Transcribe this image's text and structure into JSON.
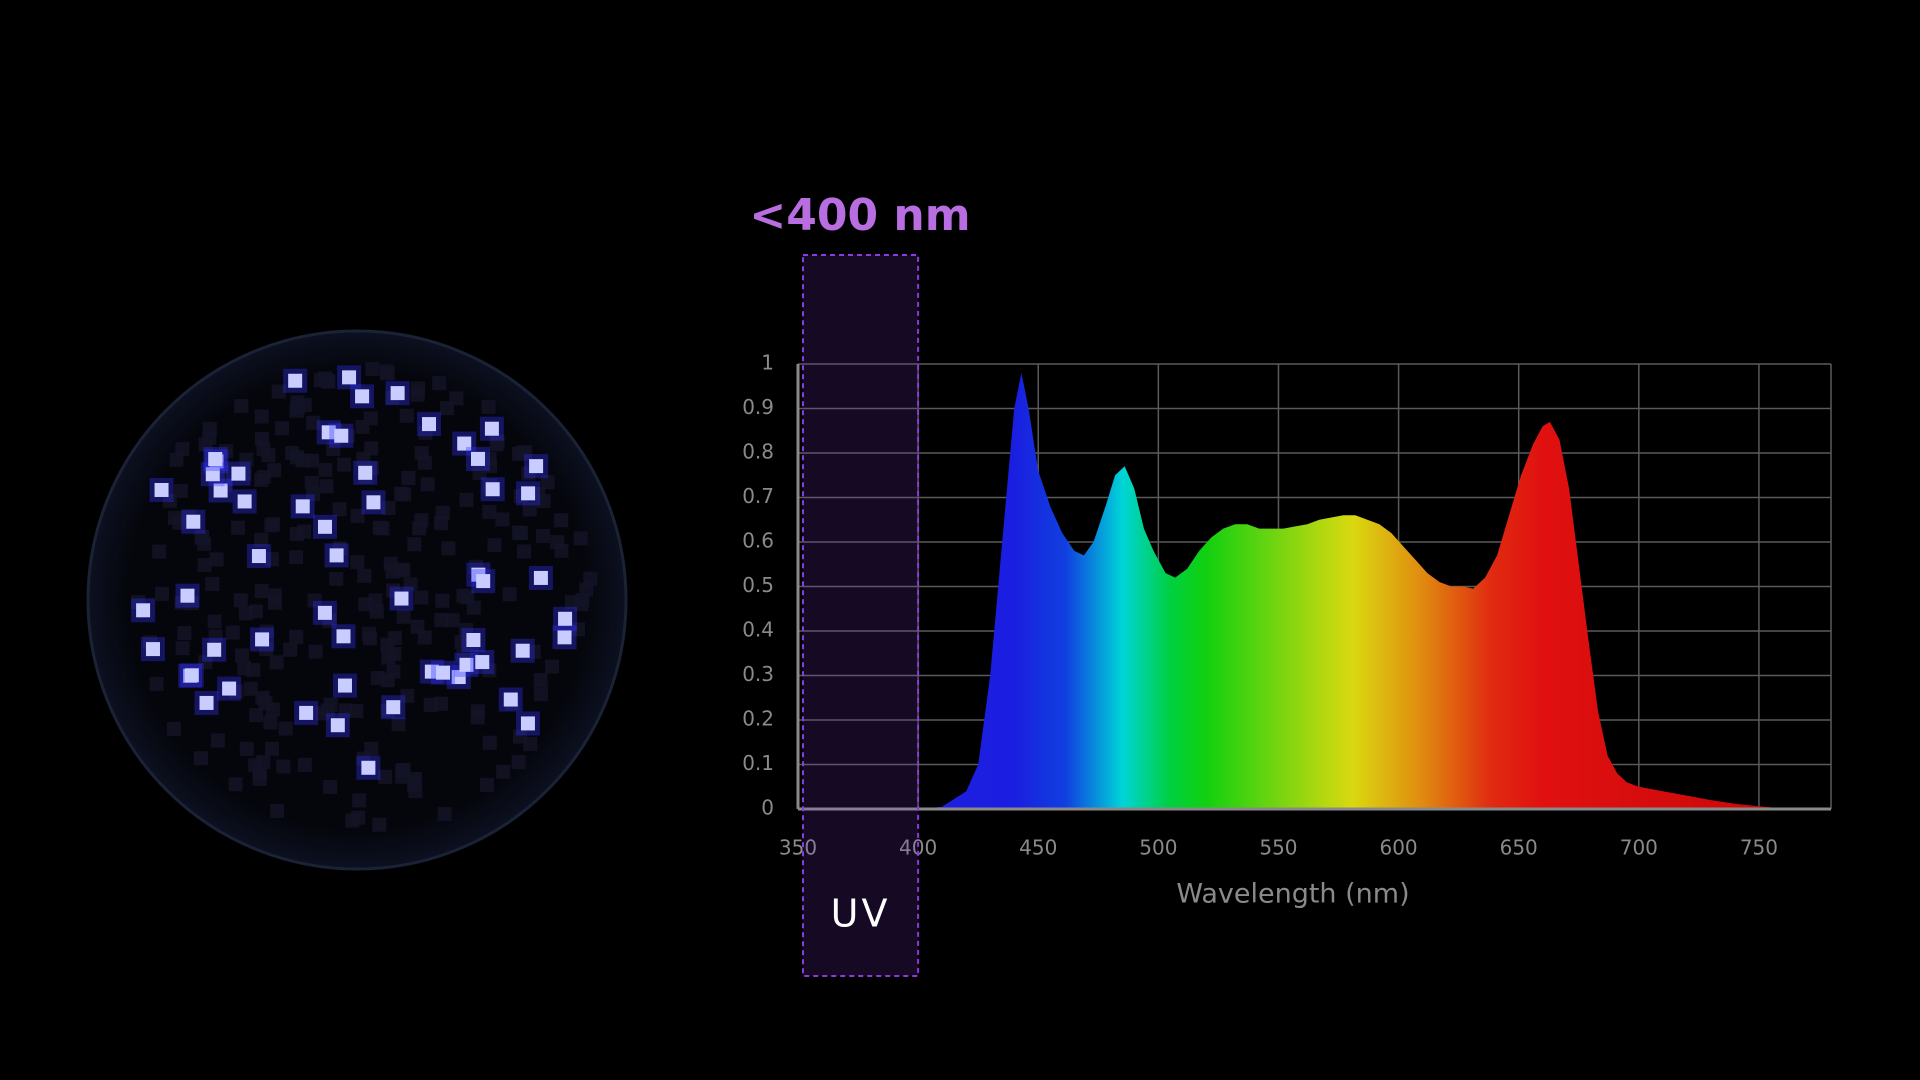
{
  "chart_data": {
    "type": "area",
    "annotation": "<400 nm",
    "band_label": "UV",
    "band_range": [
      350,
      400
    ],
    "x_label": "Wavelength (nm)",
    "x": [
      400,
      410,
      420,
      425,
      430,
      435,
      440,
      443,
      446,
      450,
      455,
      460,
      465,
      469,
      473,
      478,
      482,
      486,
      490,
      494,
      498,
      503,
      507,
      512,
      517,
      522,
      527,
      532,
      537,
      542,
      547,
      552,
      557,
      562,
      567,
      572,
      577,
      582,
      587,
      592,
      597,
      602,
      607,
      612,
      617,
      622,
      627,
      631,
      636,
      641,
      646,
      651,
      656,
      660,
      663,
      667,
      671,
      675,
      679,
      683,
      687,
      691,
      695,
      700,
      710,
      720,
      730,
      740,
      750,
      762
    ],
    "values": [
      0,
      0.005,
      0.04,
      0.1,
      0.3,
      0.6,
      0.9,
      0.98,
      0.9,
      0.76,
      0.68,
      0.62,
      0.58,
      0.57,
      0.6,
      0.68,
      0.75,
      0.77,
      0.72,
      0.63,
      0.58,
      0.53,
      0.52,
      0.54,
      0.58,
      0.61,
      0.63,
      0.64,
      0.64,
      0.63,
      0.63,
      0.63,
      0.635,
      0.64,
      0.65,
      0.655,
      0.66,
      0.66,
      0.65,
      0.64,
      0.62,
      0.59,
      0.56,
      0.53,
      0.51,
      0.5,
      0.5,
      0.495,
      0.52,
      0.57,
      0.66,
      0.75,
      0.82,
      0.86,
      0.87,
      0.83,
      0.72,
      0.55,
      0.38,
      0.22,
      0.12,
      0.08,
      0.06,
      0.05,
      0.04,
      0.03,
      0.02,
      0.012,
      0.006,
      0
    ],
    "xlim": [
      350,
      780
    ],
    "ylim": [
      0,
      1
    ],
    "xticks": [
      350,
      400,
      450,
      500,
      550,
      600,
      650,
      700,
      750
    ],
    "yticks": [
      0,
      0.1,
      0.2,
      0.3,
      0.4,
      0.5,
      0.6,
      0.7,
      0.8,
      0.9,
      1
    ],
    "grid": true,
    "band_color": "#8a3ae0",
    "annotation_color": "#b86ee0"
  }
}
